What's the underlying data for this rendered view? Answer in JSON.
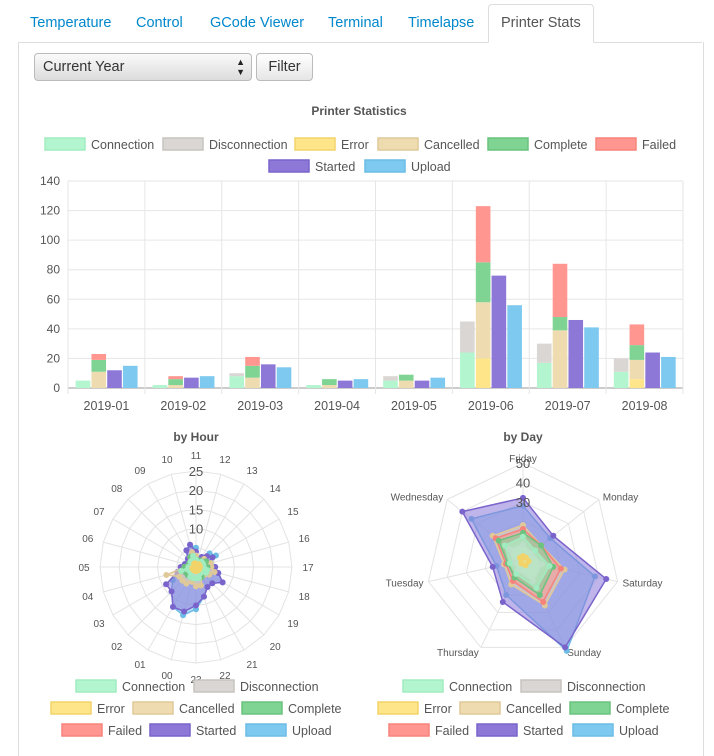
{
  "tabs": [
    {
      "label": "Temperature"
    },
    {
      "label": "Control"
    },
    {
      "label": "GCode Viewer"
    },
    {
      "label": "Terminal"
    },
    {
      "label": "Timelapse"
    },
    {
      "label": "Printer Stats"
    }
  ],
  "filter": {
    "select_value": "Current Year",
    "button_label": "Filter"
  },
  "legend": [
    {
      "name": "Connection",
      "fill": "#b3f5cf",
      "stroke": "#a1ebc0"
    },
    {
      "name": "Disconnection",
      "fill": "#dad6d3",
      "stroke": "#c8c3bf"
    },
    {
      "name": "Error",
      "fill": "#ffe58a",
      "stroke": "#f2d36a"
    },
    {
      "name": "Cancelled",
      "fill": "#eedcb0",
      "stroke": "#e0c999"
    },
    {
      "name": "Complete",
      "fill": "#7fd393",
      "stroke": "#6cc37f"
    },
    {
      "name": "Failed",
      "fill": "#ff9790",
      "stroke": "#f5837c"
    },
    {
      "name": "Started",
      "fill": "#8d78d8",
      "stroke": "#7a64cc"
    },
    {
      "name": "Upload",
      "fill": "#7ec9ef",
      "stroke": "#6cbce5"
    }
  ],
  "chart_data": [
    {
      "type": "bar",
      "title": "Printer Statistics",
      "categories": [
        "2019-01",
        "2019-02",
        "2019-03",
        "2019-04",
        "2019-05",
        "2019-06",
        "2019-07",
        "2019-08"
      ],
      "stack_1": [
        {
          "name": "Connection",
          "values": [
            5,
            2,
            8,
            2,
            5,
            24,
            17,
            11
          ]
        },
        {
          "name": "Disconnection",
          "values": [
            0,
            0,
            2,
            0,
            3,
            21,
            13,
            9
          ]
        }
      ],
      "stack_2": [
        {
          "name": "Error",
          "values": [
            0,
            0,
            0,
            0,
            0,
            20,
            0,
            6
          ]
        },
        {
          "name": "Cancelled",
          "values": [
            11,
            2,
            7,
            2,
            5,
            38,
            39,
            13
          ]
        },
        {
          "name": "Complete",
          "values": [
            8,
            4,
            8,
            4,
            4,
            27,
            9,
            10
          ]
        },
        {
          "name": "Failed",
          "values": [
            4,
            2,
            6,
            0,
            0,
            38,
            36,
            14
          ]
        }
      ],
      "series_started": {
        "name": "Started",
        "values": [
          12,
          7,
          16,
          5,
          5,
          76,
          46,
          24
        ]
      },
      "series_upload": {
        "name": "Upload",
        "values": [
          15,
          8,
          14,
          6,
          7,
          56,
          41,
          21
        ]
      },
      "ylim": [
        0,
        140
      ],
      "yticks": [
        0,
        20,
        40,
        60,
        80,
        100,
        120,
        140
      ]
    },
    {
      "type": "radar",
      "title": "by Hour",
      "axes": [
        "00",
        "01",
        "02",
        "03",
        "04",
        "05",
        "06",
        "07",
        "08",
        "09",
        "10",
        "11",
        "12",
        "13",
        "14",
        "15",
        "16",
        "17",
        "18",
        "19",
        "20",
        "21",
        "22",
        "23"
      ],
      "rlim": [
        0,
        25
      ],
      "rticks": [
        5,
        10,
        15,
        20,
        25
      ],
      "tick_labels": [
        "10",
        "15",
        "20",
        "25"
      ],
      "series": [
        {
          "name": "Connection",
          "values": [
            3,
            3,
            2,
            2,
            4,
            2,
            1,
            1,
            2,
            2,
            3,
            2,
            1,
            1,
            2,
            2,
            2,
            2,
            3,
            3,
            2,
            2,
            3,
            3
          ]
        },
        {
          "name": "Disconnection",
          "values": [
            2,
            2,
            1,
            1,
            2,
            1,
            1,
            1,
            1,
            2,
            2,
            1,
            1,
            1,
            1,
            2,
            1,
            2,
            2,
            2,
            1,
            2,
            2,
            2
          ]
        },
        {
          "name": "Error",
          "values": [
            1,
            1,
            1,
            1,
            1,
            0,
            0,
            0,
            0,
            1,
            1,
            0,
            0,
            0,
            1,
            1,
            1,
            1,
            1,
            1,
            1,
            1,
            1,
            1
          ]
        },
        {
          "name": "Cancelled",
          "values": [
            4,
            5,
            5,
            5,
            8,
            3,
            2,
            1,
            2,
            3,
            4,
            3,
            1,
            2,
            3,
            3,
            4,
            4,
            5,
            4,
            3,
            3,
            5,
            5
          ]
        },
        {
          "name": "Complete",
          "values": [
            3,
            3,
            3,
            3,
            4,
            3,
            2,
            2,
            2,
            3,
            3,
            2,
            1,
            2,
            2,
            3,
            2,
            3,
            3,
            3,
            2,
            3,
            3,
            3
          ]
        },
        {
          "name": "Failed",
          "values": [
            2,
            3,
            3,
            3,
            4,
            2,
            1,
            1,
            1,
            2,
            3,
            2,
            1,
            1,
            2,
            2,
            2,
            2,
            3,
            2,
            2,
            2,
            3,
            3
          ]
        },
        {
          "name": "Started",
          "values": [
            12,
            12,
            9,
            9,
            5,
            4,
            3,
            2,
            3,
            5,
            6,
            4,
            2,
            3,
            4,
            5,
            3,
            5,
            6,
            8,
            6,
            6,
            8,
            10
          ]
        },
        {
          "name": "Upload",
          "values": [
            13,
            12,
            9,
            7,
            5,
            3,
            3,
            2,
            3,
            5,
            6,
            5,
            2,
            3,
            5,
            6,
            4,
            5,
            6,
            8,
            6,
            6,
            8,
            11
          ]
        }
      ]
    },
    {
      "type": "radar",
      "title": "by Day",
      "axes": [
        "Friday",
        "Monday",
        "Saturday",
        "Sunday",
        "Thursday",
        "Tuesday",
        "Wednesday"
      ],
      "rlim": [
        0,
        50
      ],
      "rticks": [
        10,
        20,
        30,
        40,
        50
      ],
      "tick_labels": [
        "30",
        "40",
        "50"
      ],
      "series": [
        {
          "name": "Connection",
          "values": [
            12,
            8,
            14,
            16,
            8,
            7,
            12
          ]
        },
        {
          "name": "Disconnection",
          "values": [
            8,
            6,
            10,
            12,
            6,
            5,
            9
          ]
        },
        {
          "name": "Error",
          "values": [
            2,
            2,
            3,
            3,
            2,
            1,
            2
          ]
        },
        {
          "name": "Cancelled",
          "values": [
            18,
            12,
            22,
            26,
            14,
            10,
            20
          ]
        },
        {
          "name": "Complete",
          "values": [
            14,
            12,
            16,
            20,
            10,
            8,
            16
          ]
        },
        {
          "name": "Failed",
          "values": [
            16,
            12,
            20,
            24,
            12,
            9,
            18
          ]
        },
        {
          "name": "Started",
          "values": [
            32,
            20,
            44,
            50,
            24,
            16,
            40
          ]
        },
        {
          "name": "Upload",
          "values": [
            28,
            18,
            38,
            52,
            20,
            14,
            34
          ]
        }
      ]
    }
  ]
}
